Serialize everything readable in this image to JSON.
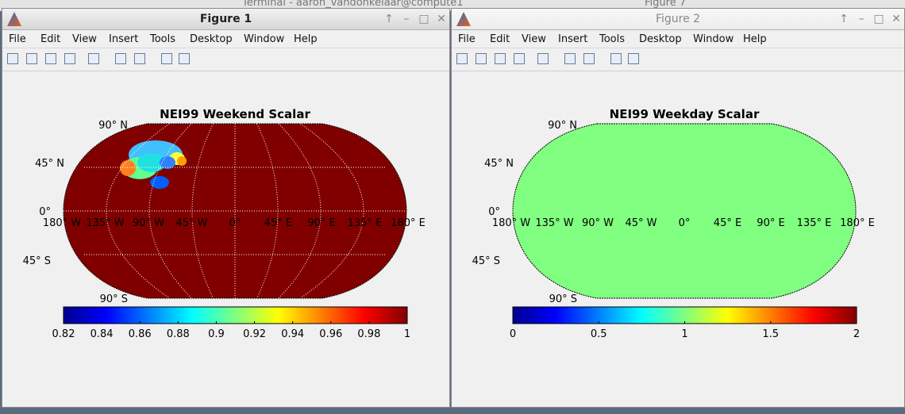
{
  "background": {
    "title_left": "Terminal - aaron_vandonkelaar@compute1",
    "title_right": "Figure 7"
  },
  "windows": [
    {
      "title": "Figure 1",
      "active": true,
      "menu": [
        "File",
        "Edit",
        "View",
        "Insert",
        "Tools",
        "Desktop",
        "Window",
        "Help"
      ],
      "plot": {
        "title": "NEI99 Weekend Scalar",
        "map_color": "#800000",
        "lat_labels": [
          "90° N",
          "45° N",
          "0°",
          "45° S",
          "90° S"
        ],
        "lon_labels": [
          "180° W",
          "135° W",
          "90° W",
          "45° W",
          "0°",
          "45° E",
          "90° E",
          "135° E",
          "180° E"
        ],
        "colorbar": {
          "colormap": "jet",
          "clim": [
            0.82,
            1
          ],
          "ticks": [
            0.82,
            0.84,
            0.86,
            0.88,
            0.9,
            0.92,
            0.94,
            0.96,
            0.98,
            1
          ]
        }
      }
    },
    {
      "title": "Figure 2",
      "active": false,
      "menu": [
        "File",
        "Edit",
        "View",
        "Insert",
        "Tools",
        "Desktop",
        "Window",
        "Help"
      ],
      "plot": {
        "title": "NEI99 Weekday Scalar",
        "map_color": "#80ff80",
        "lat_labels": [
          "90° N",
          "45° N",
          "0°",
          "45° S",
          "90° S"
        ],
        "lon_labels": [
          "180° W",
          "135° W",
          "90° W",
          "45° W",
          "0°",
          "45° E",
          "90° E",
          "135° E",
          "180° E"
        ],
        "colorbar": {
          "colormap": "jet",
          "clim": [
            0,
            2
          ],
          "ticks": [
            0,
            0.5,
            1,
            1.5,
            2
          ]
        }
      }
    }
  ]
}
